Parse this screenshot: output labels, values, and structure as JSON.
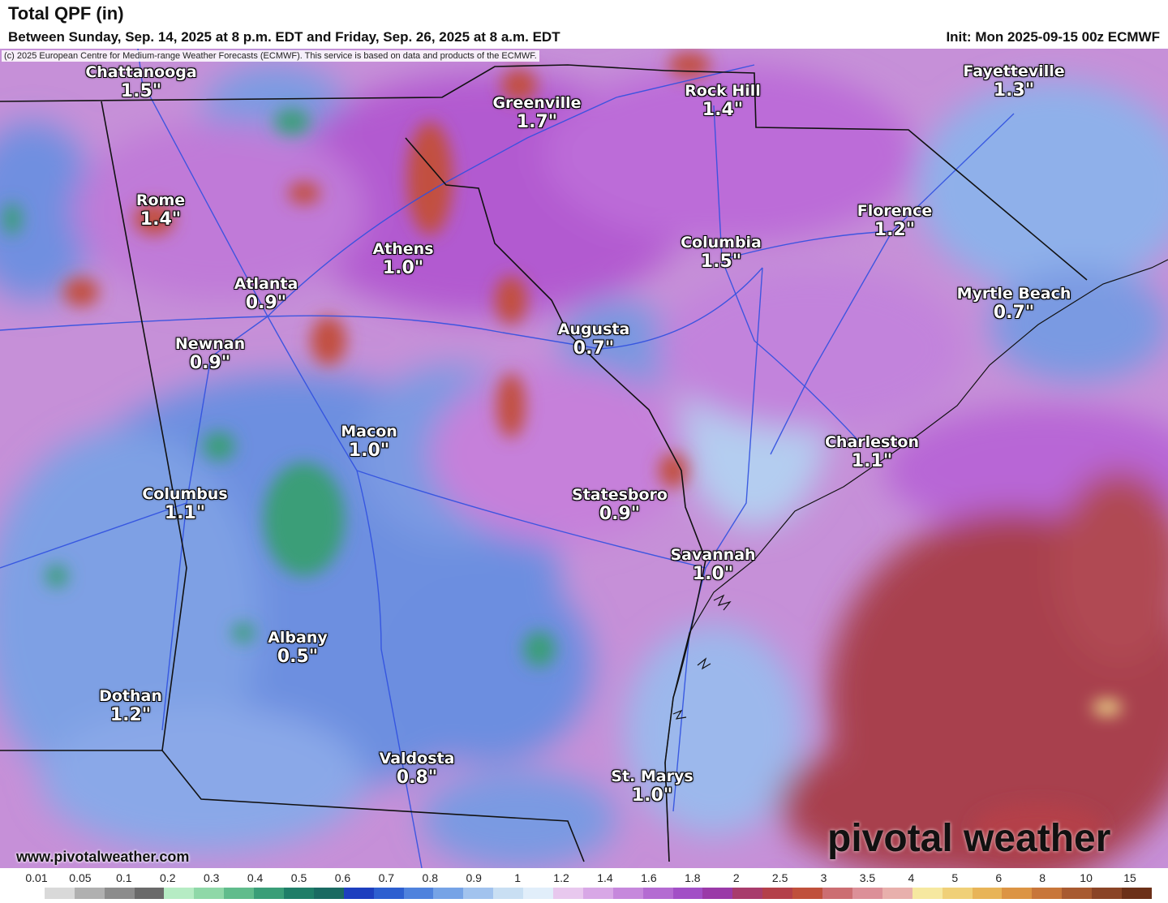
{
  "header": {
    "title": "Total QPF (in)",
    "subtitle": "Between Sunday, Sep. 14, 2025 at 8 p.m. EDT and Friday, Sep. 26, 2025 at 8 a.m. EDT",
    "init": "Init: Mon 2025-09-15 00z ECMWF"
  },
  "copyright": "(c) 2025 European Centre for Medium-range Weather Forecasts (ECMWF). This service is based on data and products of the ECMWF.",
  "cities": [
    {
      "name": "Chattanooga",
      "value": "1.5\""
    },
    {
      "name": "Greenville",
      "value": "1.7\""
    },
    {
      "name": "Rock Hill",
      "value": "1.4\""
    },
    {
      "name": "Fayetteville",
      "value": "1.3\""
    },
    {
      "name": "Rome",
      "value": "1.4\""
    },
    {
      "name": "Athens",
      "value": "1.0\""
    },
    {
      "name": "Columbia",
      "value": "1.5\""
    },
    {
      "name": "Florence",
      "value": "1.2\""
    },
    {
      "name": "Atlanta",
      "value": "0.9\""
    },
    {
      "name": "Myrtle Beach",
      "value": "0.7\""
    },
    {
      "name": "Newnan",
      "value": "0.9\""
    },
    {
      "name": "Augusta",
      "value": "0.7\""
    },
    {
      "name": "Macon",
      "value": "1.0\""
    },
    {
      "name": "Charleston",
      "value": "1.1\""
    },
    {
      "name": "Columbus",
      "value": "1.1\""
    },
    {
      "name": "Statesboro",
      "value": "0.9\""
    },
    {
      "name": "Savannah",
      "value": "1.0\""
    },
    {
      "name": "Albany",
      "value": "0.5\""
    },
    {
      "name": "Dothan",
      "value": "1.2\""
    },
    {
      "name": "Valdosta",
      "value": "0.8\""
    },
    {
      "name": "St. Marys",
      "value": "1.0\""
    }
  ],
  "footer": {
    "website": "www.pivotalweather.com",
    "brand": "pivotal weather"
  },
  "legend": {
    "labels": [
      "0.01",
      "0.05",
      "0.1",
      "0.2",
      "0.3",
      "0.4",
      "0.5",
      "0.6",
      "0.7",
      "0.8",
      "0.9",
      "1",
      "1.2",
      "1.4",
      "1.6",
      "1.8",
      "2",
      "2.5",
      "3",
      "3.5",
      "4",
      "5",
      "6",
      "8",
      "10",
      "15"
    ],
    "colors": [
      "#ffffff",
      "#d9d9d9",
      "#b0b0b0",
      "#8c8c8c",
      "#6a6a6a",
      "#b6ecc4",
      "#8fd8a8",
      "#60bc8c",
      "#3a9e78",
      "#1f7e68",
      "#1a6a62",
      "#1d3fbf",
      "#2d5fd0",
      "#4f82dd",
      "#76a3e6",
      "#a2c3ee",
      "#c9dff3",
      "#e1eefa",
      "#e8c8ee",
      "#d8a8e6",
      "#c688dc",
      "#b46bd2",
      "#a24fc6",
      "#9a3aa8",
      "#a83c6c",
      "#b4404a",
      "#c0503c",
      "#cc6e72",
      "#dc9098",
      "#e8b0ac",
      "#f6e8a0",
      "#f0d078",
      "#e8b458",
      "#dc9444",
      "#c8763a",
      "#a85a30",
      "#8a4426",
      "#6c3018"
    ]
  }
}
